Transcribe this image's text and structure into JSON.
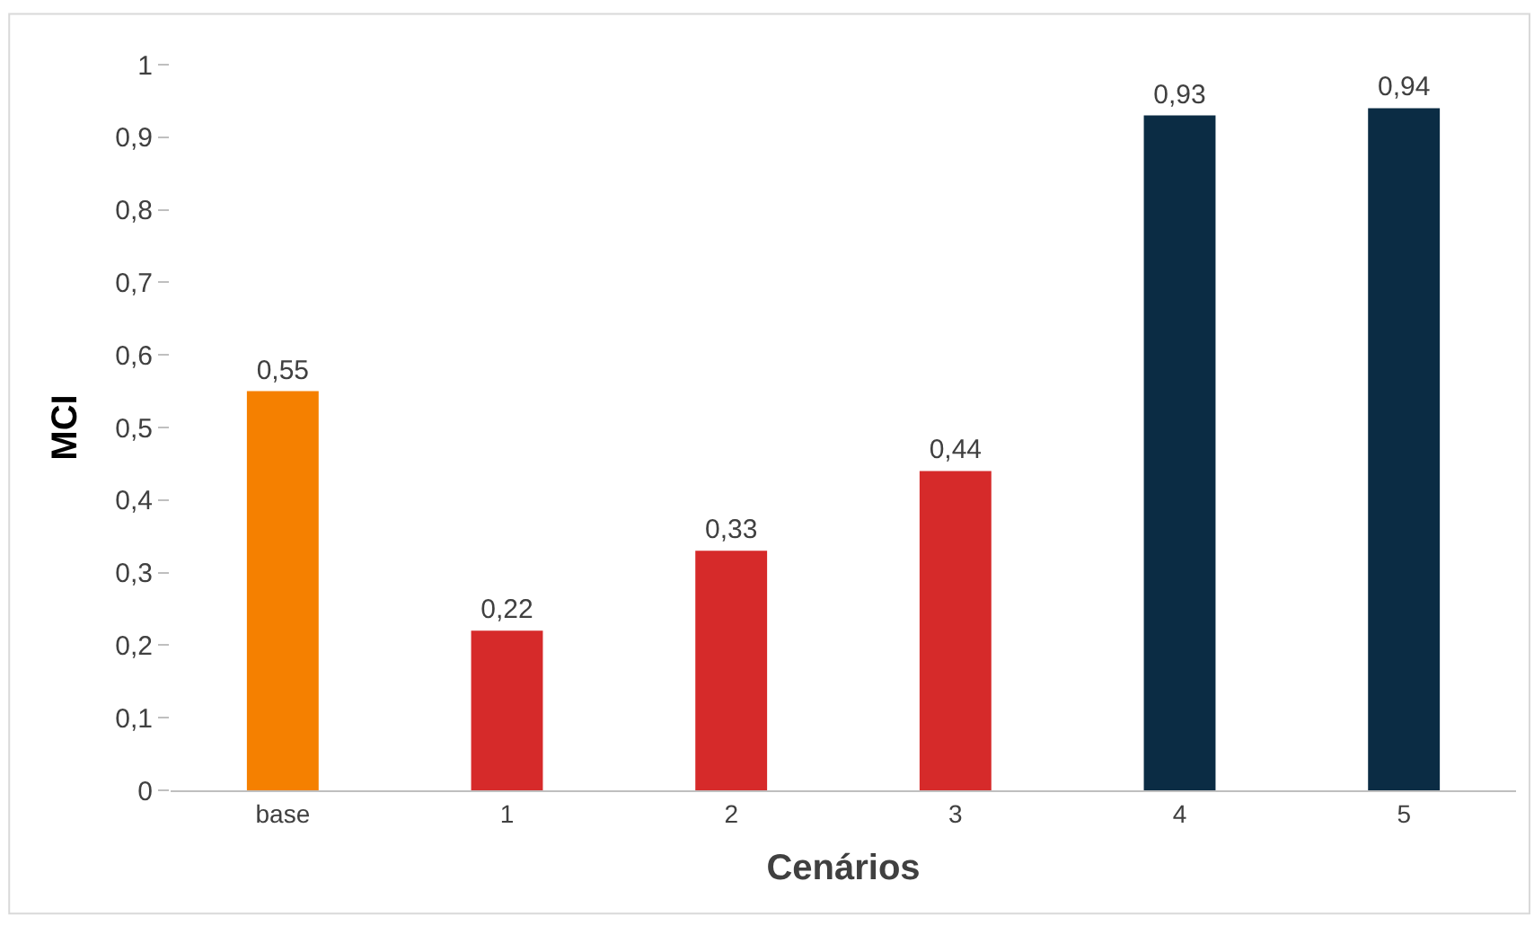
{
  "chart_data": {
    "type": "bar",
    "xlabel": "Cenários",
    "ylabel": "MCI",
    "categories": [
      "base",
      "1",
      "2",
      "3",
      "4",
      "5"
    ],
    "values": [
      0.55,
      0.22,
      0.33,
      0.44,
      0.93,
      0.94
    ],
    "colors": [
      "#f58000",
      "#d62a2a",
      "#d62a2a",
      "#d62a2a",
      "#0b2c44",
      "#0b2c44"
    ],
    "value_labels": [
      "0,55",
      "0,22",
      "0,33",
      "0,44",
      "0,93",
      "0,94"
    ],
    "ylim": [
      0,
      1
    ],
    "yticks": [
      0,
      {
        "value": 0.1,
        "label": "0,1"
      },
      {
        "value": 0.2,
        "label": "0,2"
      },
      {
        "value": 0.3,
        "label": "0,3"
      },
      {
        "value": 0.4,
        "label": "0,4"
      },
      {
        "value": 0.5,
        "label": "0,5"
      },
      {
        "value": 0.6,
        "label": "0,6"
      },
      {
        "value": 0.7,
        "label": "0,7"
      },
      {
        "value": 0.8,
        "label": "0,8"
      },
      {
        "value": 0.9,
        "label": "0,9"
      },
      1
    ],
    "legend": false
  }
}
